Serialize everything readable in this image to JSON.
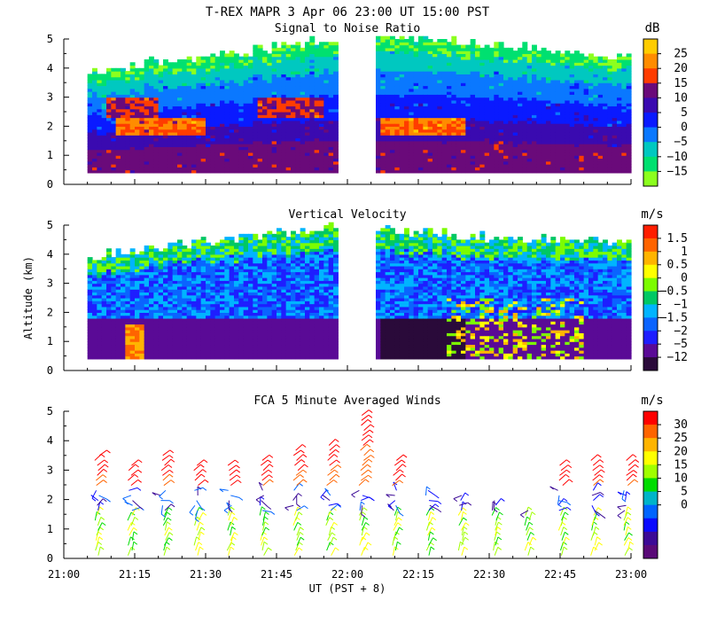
{
  "figure": {
    "title": "T-REX  MAPR  3 Apr 06  23:00 UT  15:00  PST",
    "xlabel": "UT  (PST + 8)",
    "ylabel": "Altitude (km)"
  },
  "chart_data": [
    {
      "type": "heatmap",
      "title": "Signal to Noise Ratio",
      "colorbar_unit": "dB",
      "x_range": [
        "21:00",
        "23:00"
      ],
      "x_ticks": [
        "21:00",
        "21:15",
        "21:30",
        "21:45",
        "22:00",
        "22:15",
        "22:30",
        "22:45",
        "23:00"
      ],
      "ylim": [
        0,
        5
      ],
      "y_ticks": [
        "0",
        "1",
        "2",
        "3",
        "4",
        "5"
      ],
      "colorbar_labels": [
        "25",
        "20",
        "15",
        "10",
        "5",
        "0",
        "−5",
        "−10",
        "−15"
      ],
      "colorbar_colors": [
        "#ffcc00",
        "#ff8c00",
        "#ff3c00",
        "#6a0a7a",
        "#3a0ab0",
        "#0a1aff",
        "#0a78ff",
        "#00c8c0",
        "#00e070",
        "#8cff1e"
      ],
      "data_gap": [
        "21:58",
        "22:06"
      ]
    },
    {
      "type": "heatmap",
      "title": "Vertical Velocity",
      "colorbar_unit": "m/s",
      "x_range": [
        "21:00",
        "23:00"
      ],
      "x_ticks": [
        "21:00",
        "21:15",
        "21:30",
        "21:45",
        "22:00",
        "22:15",
        "22:30",
        "22:45",
        "23:00"
      ],
      "ylim": [
        0,
        5
      ],
      "y_ticks": [
        "0",
        "1",
        "2",
        "3",
        "4",
        "5"
      ],
      "colorbar_labels": [
        "1.5",
        "1",
        "0.5",
        "0",
        "−0.5",
        "−1",
        "−1.5",
        "−2",
        "−5",
        "−12"
      ],
      "colorbar_colors": [
        "#ff1e00",
        "#ff6400",
        "#ffb400",
        "#ffff00",
        "#7cfc00",
        "#00c864",
        "#00b4ff",
        "#0a64ff",
        "#1e1eff",
        "#5a0a96",
        "#2a0a3a"
      ],
      "data_gap": [
        "21:58",
        "22:06"
      ]
    },
    {
      "type": "scatter",
      "title": "FCA 5 Minute Averaged Winds",
      "colorbar_unit": "m/s",
      "x_range": [
        "21:00",
        "23:00"
      ],
      "x_ticks": [
        "21:00",
        "21:15",
        "21:30",
        "21:45",
        "22:00",
        "22:15",
        "22:30",
        "22:45",
        "23:00"
      ],
      "ylim": [
        0,
        5
      ],
      "y_ticks": [
        "0",
        "1",
        "2",
        "3",
        "4",
        "5"
      ],
      "colorbar_labels": [
        "30",
        "25",
        "20",
        "15",
        "10",
        "5",
        "0"
      ],
      "colorbar_colors": [
        "#ff0000",
        "#ff6400",
        "#ffb400",
        "#ffff00",
        "#a0ff00",
        "#00dc00",
        "#00b4c8",
        "#0064ff",
        "#0a0aff",
        "#3c0a96",
        "#5a0a78"
      ],
      "times_min": [
        7,
        14,
        21,
        28,
        35,
        42,
        49,
        56,
        63,
        70,
        77,
        84,
        91,
        98,
        105,
        112,
        119
      ],
      "tops_km": [
        3.6,
        3.2,
        3.6,
        3.2,
        3.2,
        3.4,
        3.8,
        4.0,
        4.9,
        3.4,
        2.4,
        2.2,
        2.0,
        1.7,
        3.2,
        3.4,
        3.4
      ]
    }
  ]
}
